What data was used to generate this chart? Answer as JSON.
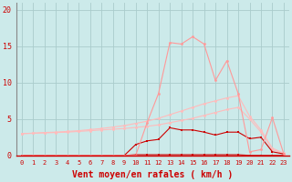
{
  "x": [
    0,
    1,
    2,
    3,
    4,
    5,
    6,
    7,
    8,
    9,
    10,
    11,
    12,
    13,
    14,
    15,
    16,
    17,
    18,
    19,
    20,
    21,
    22,
    23
  ],
  "line_freq": [
    0.0,
    0.0,
    0.0,
    0.0,
    0.0,
    0.0,
    0.0,
    0.0,
    0.0,
    0.0,
    0.1,
    0.1,
    0.1,
    0.1,
    0.1,
    0.1,
    0.1,
    0.1,
    0.1,
    0.1,
    0.0,
    0.0,
    0.0,
    0.0
  ],
  "line_trend1": [
    3.0,
    3.05,
    3.1,
    3.15,
    3.2,
    3.3,
    3.4,
    3.5,
    3.6,
    3.7,
    3.85,
    4.0,
    4.2,
    4.5,
    4.8,
    5.1,
    5.5,
    5.9,
    6.3,
    6.6,
    5.0,
    3.2,
    0.8,
    0.2
  ],
  "line_trend2": [
    3.0,
    3.05,
    3.15,
    3.2,
    3.3,
    3.4,
    3.55,
    3.7,
    3.9,
    4.1,
    4.4,
    4.7,
    5.1,
    5.6,
    6.1,
    6.6,
    7.1,
    7.5,
    7.9,
    8.2,
    5.4,
    3.5,
    1.0,
    0.3
  ],
  "line_moyen": [
    0.0,
    0.0,
    0.0,
    0.0,
    0.0,
    0.0,
    0.0,
    0.0,
    0.0,
    0.0,
    1.5,
    2.0,
    2.2,
    3.8,
    3.5,
    3.5,
    3.2,
    2.8,
    3.2,
    3.2,
    2.3,
    2.5,
    0.5,
    0.2
  ],
  "line_rafales": [
    0.0,
    0.0,
    0.0,
    0.0,
    0.0,
    0.0,
    0.0,
    0.0,
    0.0,
    0.0,
    0.0,
    4.5,
    8.5,
    15.5,
    15.3,
    16.3,
    15.3,
    10.3,
    13.0,
    8.5,
    0.5,
    0.8,
    5.2,
    0.2
  ],
  "xlabel": "Vent moyen/en rafales ( km/h )",
  "ylim": [
    0,
    21
  ],
  "xlim": [
    -0.5,
    23.5
  ],
  "yticks": [
    0,
    5,
    10,
    15,
    20
  ],
  "bg_color": "#cceaea",
  "grid_color": "#aacccc",
  "color_dark_red": "#cc0000",
  "color_light_pink": "#ff9999",
  "color_med_pink": "#ffbbbb",
  "tick_fontsize": 5,
  "label_fontsize": 7
}
